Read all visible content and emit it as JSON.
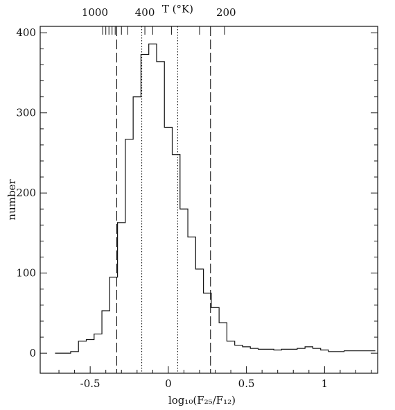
{
  "chart_data": {
    "type": "histogram",
    "xlabel": "log₁₀(F₂₅/F₁₂)",
    "ylabel": "number",
    "top_axis_label": "T (°K)",
    "xlim": [
      -0.82,
      1.34
    ],
    "ylim": [
      -25,
      408
    ],
    "x_ticks": [
      {
        "value": -0.5,
        "label": "-0.5"
      },
      {
        "value": 0,
        "label": "0"
      },
      {
        "value": 0.5,
        "label": "0.5"
      },
      {
        "value": 1,
        "label": "1"
      }
    ],
    "y_ticks": [
      {
        "value": 0,
        "label": "0"
      },
      {
        "value": 100,
        "label": "100"
      },
      {
        "value": 200,
        "label": "200"
      },
      {
        "value": 300,
        "label": "300"
      },
      {
        "value": 400,
        "label": "400"
      }
    ],
    "top_ticks": [
      {
        "value": -0.42,
        "label": "1000"
      },
      {
        "value": -0.4,
        "label": ""
      },
      {
        "value": -0.38,
        "label": ""
      },
      {
        "value": -0.36,
        "label": ""
      },
      {
        "value": -0.34,
        "label": ""
      },
      {
        "value": -0.3,
        "label": ""
      },
      {
        "value": -0.26,
        "label": ""
      },
      {
        "value": -0.15,
        "label": "400"
      },
      {
        "value": -0.1,
        "label": ""
      },
      {
        "value": 0.02,
        "label": ""
      },
      {
        "value": 0.2,
        "label": ""
      },
      {
        "value": 0.36,
        "label": "200"
      }
    ],
    "top_label_positions": {
      "1000": -0.47,
      "400": -0.15,
      "200": 0.37
    },
    "bin_width": 0.05,
    "bins_start": [
      -0.725,
      -0.675,
      -0.625,
      -0.575,
      -0.525,
      -0.475,
      -0.425,
      -0.375,
      -0.325,
      -0.275,
      -0.225,
      -0.175,
      -0.125,
      -0.075,
      -0.025,
      0.025,
      0.075,
      0.125,
      0.175,
      0.225,
      0.275,
      0.325,
      0.375,
      0.425,
      0.475,
      0.525,
      0.575,
      0.625,
      0.675,
      0.725,
      0.775,
      0.825,
      0.875,
      0.925,
      0.975,
      1.025,
      1.075,
      1.125,
      1.175,
      1.225,
      1.275
    ],
    "counts": [
      0,
      0,
      2,
      15,
      17,
      24,
      53,
      95,
      163,
      267,
      320,
      373,
      386,
      364,
      282,
      248,
      180,
      145,
      105,
      75,
      57,
      38,
      15,
      10,
      8,
      6,
      5,
      5,
      4,
      5,
      5,
      6,
      8,
      6,
      4,
      2,
      2,
      3,
      3,
      3,
      3
    ],
    "reference_lines": [
      {
        "x": -0.33,
        "style": "long-dash"
      },
      {
        "x": 0.27,
        "style": "long-dash"
      },
      {
        "x": -0.17,
        "style": "dotted"
      },
      {
        "x": 0.06,
        "style": "dotted"
      }
    ]
  }
}
